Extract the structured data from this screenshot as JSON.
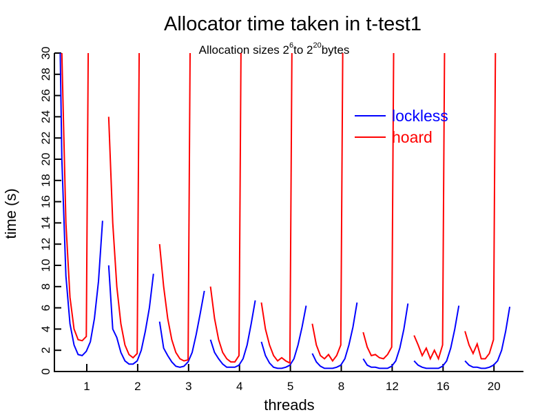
{
  "chart_data": {
    "type": "line",
    "title": "Allocator time taken in t-test1",
    "subtitle": {
      "prefix": "Allocation sizes 2",
      "exp1": "6",
      "middle": "to 2",
      "exp2": "20",
      "suffix": "bytes"
    },
    "xlabel": "threads",
    "ylabel": "time (s)",
    "ylim": [
      0,
      30
    ],
    "yticks": [
      0,
      2,
      4,
      6,
      8,
      10,
      12,
      14,
      16,
      18,
      20,
      22,
      24,
      26,
      28,
      30
    ],
    "xtick_labels": [
      "1",
      "2",
      "3",
      "4",
      "5",
      "8",
      "12",
      "16",
      "20"
    ],
    "legend": {
      "placement": "top-right",
      "entries": [
        "lockless",
        "hoard"
      ]
    },
    "colors": {
      "lockless": "#0000ff",
      "hoard": "#ff0000",
      "axis": "#000000"
    },
    "group_offsets": [
      -0.57,
      -0.49,
      -0.41,
      -0.33,
      -0.25,
      -0.17,
      -0.09,
      -0.01,
      0.07,
      0.15,
      0.23,
      0.31
    ],
    "series": [
      {
        "name": "lockless",
        "groups": [
          [
            45,
            20,
            9,
            4.5,
            2.5,
            1.6,
            1.5,
            1.9,
            2.8,
            5,
            8.5,
            14.2
          ],
          [
            10,
            4,
            3.2,
            1.8,
            1.0,
            0.7,
            0.7,
            1.0,
            2.0,
            3.8,
            6,
            9.2
          ],
          [
            4.7,
            2.2,
            1.5,
            0.9,
            0.5,
            0.4,
            0.5,
            0.9,
            1.8,
            3.5,
            5.5,
            7.6
          ],
          [
            3,
            1.8,
            1.2,
            0.7,
            0.4,
            0.4,
            0.4,
            0.6,
            1.2,
            2.5,
            4.5,
            6.7
          ],
          [
            2.8,
            1.5,
            0.8,
            0.4,
            0.3,
            0.3,
            0.4,
            0.6,
            1.2,
            2.5,
            4.2,
            6.2
          ],
          [
            1.7,
            0.9,
            0.5,
            0.3,
            0.3,
            0.3,
            0.4,
            0.6,
            1.2,
            2.5,
            4.2,
            6.5
          ],
          [
            1.2,
            0.6,
            0.4,
            0.4,
            0.3,
            0.3,
            0.3,
            0.5,
            1.0,
            2.2,
            4.0,
            6.4
          ],
          [
            1.0,
            0.6,
            0.4,
            0.3,
            0.3,
            0.3,
            0.3,
            0.5,
            1.0,
            2.2,
            4.0,
            6.2
          ],
          [
            1.0,
            0.6,
            0.4,
            0.4,
            0.3,
            0.3,
            0.4,
            0.6,
            1.0,
            2.0,
            3.8,
            6.1
          ]
        ]
      },
      {
        "name": "hoard",
        "groups": [
          [
            60,
            30,
            14,
            7,
            4,
            3,
            2.9,
            3.3,
            60
          ],
          [
            24,
            14,
            8,
            4.5,
            2.5,
            1.6,
            1.3,
            1.7,
            60
          ],
          [
            12,
            8,
            5,
            3,
            1.8,
            1.2,
            1.0,
            1.1,
            60
          ],
          [
            8,
            5,
            3,
            1.8,
            1.2,
            0.9,
            0.9,
            1.5,
            60
          ],
          [
            6.5,
            4,
            2.5,
            1.5,
            1.0,
            1.3,
            1.0,
            0.8,
            60
          ],
          [
            4.5,
            2.5,
            1.5,
            1.2,
            1.6,
            1.0,
            1.5,
            2.5,
            60
          ],
          [
            3.7,
            2.3,
            1.5,
            1.6,
            1.3,
            1.2,
            1.6,
            2.3,
            60
          ],
          [
            3.4,
            2.5,
            1.5,
            2.2,
            1.2,
            2.0,
            1.2,
            2.5,
            60
          ],
          [
            3.8,
            2.5,
            1.7,
            2.6,
            1.2,
            1.2,
            1.7,
            3.0,
            60
          ]
        ]
      }
    ]
  }
}
